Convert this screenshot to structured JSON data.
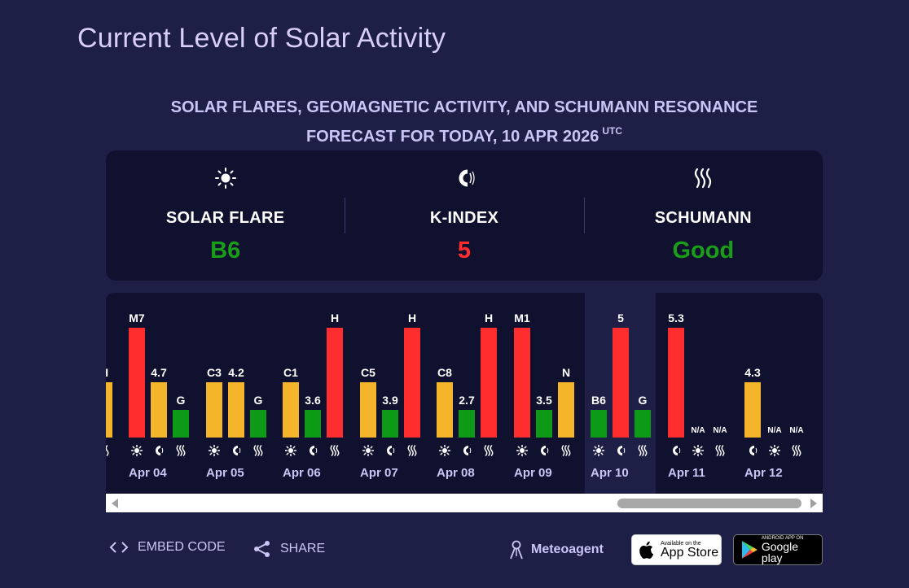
{
  "page": {
    "title": "Current Level of Solar Activity",
    "subtitle_line1": "SOLAR FLARES, GEOMAGNETIC ACTIVITY, AND SCHUMANN RESONANCE",
    "subtitle_line2": "FORECAST FOR TODAY, 10 APR 2026",
    "subtitle_sup": "UTC"
  },
  "summary": {
    "solar_flare": {
      "label": "SOLAR FLARE",
      "value": "B6",
      "color": "#1a9e1a",
      "icon": "sun-icon"
    },
    "k_index": {
      "label": "K-INDEX",
      "value": "5",
      "color": "#ff2d2d",
      "icon": "magnet-icon"
    },
    "schumann": {
      "label": "SCHUMANN",
      "value": "Good",
      "color": "#1a9e1a",
      "icon": "waves-icon"
    }
  },
  "colors": {
    "green": "#0d9a16",
    "yellow": "#f4b52b",
    "red": "#ff2d2d",
    "label": "#c9c6f6"
  },
  "timeline": {
    "partial_day": {
      "schumann_label": "H"
    },
    "days": [
      {
        "date": "Apr 04",
        "flare": "M7",
        "flare_level": 1.0,
        "flare_color": "red",
        "k": "4.7",
        "k_level": 0.5,
        "k_color": "yellow",
        "schumann": "G",
        "schumann_level": 0.25,
        "schumann_color": "green"
      },
      {
        "date": "Apr 05",
        "flare": "C3",
        "flare_level": 0.5,
        "flare_color": "yellow",
        "k": "4.2",
        "k_level": 0.5,
        "k_color": "yellow",
        "schumann": "G",
        "schumann_level": 0.25,
        "schumann_color": "green"
      },
      {
        "date": "Apr 06",
        "flare": "C1",
        "flare_level": 0.5,
        "flare_color": "yellow",
        "k": "3.6",
        "k_level": 0.25,
        "k_color": "green",
        "schumann": "H",
        "schumann_level": 1.0,
        "schumann_color": "red"
      },
      {
        "date": "Apr 07",
        "flare": "C5",
        "flare_level": 0.5,
        "flare_color": "yellow",
        "k": "3.9",
        "k_level": 0.25,
        "k_color": "green",
        "schumann": "H",
        "schumann_level": 1.0,
        "schumann_color": "red"
      },
      {
        "date": "Apr 08",
        "flare": "C8",
        "flare_level": 0.5,
        "flare_color": "yellow",
        "k": "2.7",
        "k_level": 0.25,
        "k_color": "green",
        "schumann": "H",
        "schumann_level": 1.0,
        "schumann_color": "red"
      },
      {
        "date": "Apr 09",
        "flare": "M1",
        "flare_level": 1.0,
        "flare_color": "red",
        "k": "3.5",
        "k_level": 0.25,
        "k_color": "green",
        "schumann": "N",
        "schumann_level": 0.5,
        "schumann_color": "yellow"
      },
      {
        "date": "Apr 10",
        "flare": "B6",
        "flare_level": 0.25,
        "flare_color": "green",
        "k": "5",
        "k_level": 1.0,
        "k_color": "red",
        "schumann": "G",
        "schumann_level": 0.25,
        "schumann_color": "green"
      }
    ],
    "forecast_days": [
      {
        "date": "Apr 11",
        "k": "5.3",
        "k_level": 1.0,
        "k_color": "red",
        "flare": "N/A",
        "schumann": "N/A"
      },
      {
        "date": "Apr 12",
        "k": "4.3",
        "k_level": 0.5,
        "k_color": "yellow",
        "flare": "N/A",
        "schumann": "N/A"
      }
    ]
  },
  "footer": {
    "embed_label": "EMBED CODE",
    "share_label": "SHARE",
    "brand": "Meteoagent",
    "appstore_small": "Available on the",
    "appstore_big": "App Store",
    "googleplay_small": "ANDROID APP ON",
    "googleplay_big": "Google play"
  }
}
